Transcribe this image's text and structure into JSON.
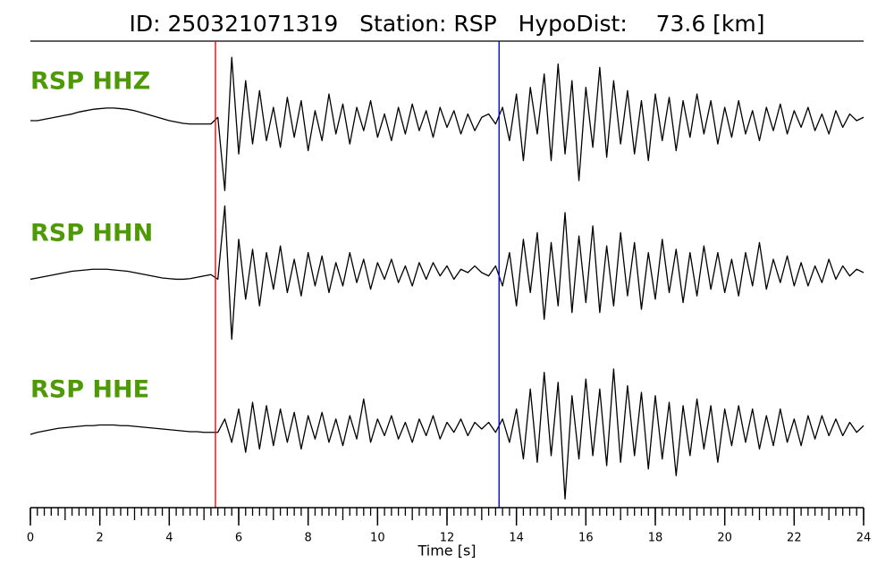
{
  "chart_data": {
    "type": "line",
    "title": "ID: 250321071319   Station: RSP   HypoDist:    73.6 [km]",
    "x_label": "Time [s]",
    "x": [
      0,
      0.2,
      0.4,
      0.6,
      0.8,
      1,
      1.2,
      1.4,
      1.6,
      1.8,
      2,
      2.2,
      2.4,
      2.6,
      2.8,
      3,
      3.2,
      3.4,
      3.6,
      3.8,
      4,
      4.2,
      4.4,
      4.6,
      4.8,
      5,
      5.2,
      5.4,
      5.6,
      5.8,
      6,
      6.2,
      6.4,
      6.6,
      6.8,
      7,
      7.2,
      7.4,
      7.6,
      7.8,
      8,
      8.2,
      8.4,
      8.6,
      8.8,
      9,
      9.2,
      9.4,
      9.6,
      9.8,
      10,
      10.2,
      10.4,
      10.6,
      10.8,
      11,
      11.2,
      11.4,
      11.6,
      11.8,
      12,
      12.2,
      12.4,
      12.6,
      12.8,
      13,
      13.2,
      13.4,
      13.6,
      13.8,
      14,
      14.2,
      14.4,
      14.6,
      14.8,
      15,
      15.2,
      15.4,
      15.6,
      15.8,
      16,
      16.2,
      16.4,
      16.6,
      16.8,
      17,
      17.2,
      17.4,
      17.6,
      17.8,
      18,
      18.2,
      18.4,
      18.6,
      18.8,
      19,
      19.2,
      19.4,
      19.6,
      19.8,
      20,
      20.2,
      20.4,
      20.6,
      20.8,
      21,
      21.2,
      21.4,
      21.6,
      21.8,
      22,
      22.2,
      22.4,
      22.6,
      22.8,
      23,
      23.2,
      23.4,
      23.6,
      23.8,
      24
    ],
    "series": [
      {
        "name": "RSP HHZ",
        "color": "#000000",
        "values": [
          0,
          0,
          0.02,
          0.04,
          0.06,
          0.08,
          0.1,
          0.13,
          0.15,
          0.17,
          0.18,
          0.19,
          0.19,
          0.18,
          0.17,
          0.15,
          0.12,
          0.09,
          0.06,
          0.03,
          0,
          -0.02,
          -0.04,
          -0.05,
          -0.05,
          -0.05,
          -0.05,
          0.05,
          -1.05,
          0.95,
          -0.5,
          0.6,
          -0.35,
          0.45,
          -0.3,
          0.2,
          -0.4,
          0.35,
          -0.25,
          0.3,
          -0.45,
          0.15,
          -0.3,
          0.4,
          -0.2,
          0.25,
          -0.35,
          0.2,
          -0.15,
          0.3,
          -0.25,
          0.1,
          -0.3,
          0.2,
          -0.2,
          0.25,
          -0.15,
          0.15,
          -0.25,
          0.2,
          -0.1,
          0.15,
          -0.2,
          0.1,
          -0.15,
          0.05,
          0.1,
          -0.05,
          0.2,
          -0.3,
          0.4,
          -0.6,
          0.5,
          -0.2,
          0.7,
          -0.6,
          0.85,
          -0.5,
          0.6,
          -0.9,
          0.5,
          -0.4,
          0.8,
          -0.55,
          0.6,
          -0.35,
          0.45,
          -0.5,
          0.3,
          -0.6,
          0.4,
          -0.3,
          0.35,
          -0.45,
          0.3,
          -0.25,
          0.4,
          -0.2,
          0.3,
          -0.35,
          0.2,
          -0.25,
          0.3,
          -0.2,
          0.15,
          -0.3,
          0.2,
          -0.15,
          0.25,
          -0.2,
          0.15,
          -0.1,
          0.2,
          -0.15,
          0.1,
          -0.2,
          0.15,
          -0.1,
          0.1,
          0,
          0.05
        ]
      },
      {
        "name": "RSP HHN",
        "color": "#000000",
        "values": [
          -0.1,
          -0.08,
          -0.06,
          -0.04,
          -0.02,
          0,
          0.02,
          0.03,
          0.04,
          0.05,
          0.05,
          0.05,
          0.04,
          0.03,
          0.02,
          0,
          -0.02,
          -0.04,
          -0.06,
          -0.08,
          -0.09,
          -0.1,
          -0.1,
          -0.09,
          -0.07,
          -0.05,
          -0.03,
          -0.1,
          1.0,
          -1.0,
          0.5,
          -0.4,
          0.35,
          -0.5,
          0.3,
          -0.25,
          0.4,
          -0.3,
          0.2,
          -0.35,
          0.3,
          -0.2,
          0.25,
          -0.3,
          0.15,
          -0.2,
          0.3,
          -0.15,
          0.2,
          -0.25,
          0.15,
          -0.1,
          0.2,
          -0.15,
          0.1,
          -0.2,
          0.15,
          -0.1,
          0.15,
          -0.05,
          0.1,
          -0.1,
          0.05,
          0,
          0.1,
          0,
          -0.05,
          0.1,
          -0.2,
          0.3,
          -0.5,
          0.5,
          -0.3,
          0.6,
          -0.7,
          0.45,
          -0.5,
          0.9,
          -0.6,
          0.55,
          -0.45,
          0.7,
          -0.6,
          0.4,
          -0.5,
          0.6,
          -0.35,
          0.45,
          -0.55,
          0.3,
          -0.4,
          0.5,
          -0.3,
          0.35,
          -0.45,
          0.3,
          -0.35,
          0.4,
          -0.25,
          0.3,
          -0.3,
          0.2,
          -0.35,
          0.3,
          -0.2,
          0.45,
          -0.25,
          0.2,
          -0.15,
          0.25,
          -0.2,
          0.15,
          -0.2,
          0.1,
          -0.15,
          0.2,
          -0.1,
          0.1,
          -0.05,
          0.05,
          0
        ]
      },
      {
        "name": "RSP HHE",
        "color": "#000000",
        "values": [
          -0.08,
          -0.05,
          -0.03,
          -0.01,
          0.01,
          0.02,
          0.03,
          0.04,
          0.05,
          0.05,
          0.06,
          0.06,
          0.06,
          0.05,
          0.05,
          0.04,
          0.03,
          0.02,
          0.01,
          0,
          -0.01,
          -0.02,
          -0.03,
          -0.04,
          -0.04,
          -0.05,
          -0.05,
          -0.05,
          0.15,
          -0.2,
          0.3,
          -0.35,
          0.4,
          -0.3,
          0.35,
          -0.25,
          0.3,
          -0.2,
          0.25,
          -0.3,
          0.2,
          -0.15,
          0.25,
          -0.2,
          0.15,
          -0.25,
          0.2,
          -0.15,
          0.45,
          -0.2,
          0.15,
          -0.1,
          0.2,
          -0.15,
          0.1,
          -0.2,
          0.15,
          -0.1,
          0.2,
          -0.15,
          0.1,
          -0.05,
          0.15,
          -0.1,
          0.1,
          0,
          0.1,
          -0.05,
          0.15,
          -0.2,
          0.3,
          -0.45,
          0.6,
          -0.5,
          0.85,
          -0.4,
          0.7,
          -1.05,
          0.5,
          -0.45,
          0.75,
          -0.4,
          0.6,
          -0.55,
          0.9,
          -0.5,
          0.65,
          -0.4,
          0.55,
          -0.6,
          0.5,
          -0.45,
          0.4,
          -0.7,
          0.35,
          -0.4,
          0.45,
          -0.3,
          0.35,
          -0.5,
          0.3,
          -0.25,
          0.35,
          -0.2,
          0.3,
          -0.3,
          0.2,
          -0.25,
          0.3,
          -0.2,
          0.15,
          -0.25,
          0.2,
          -0.15,
          0.2,
          -0.1,
          0.15,
          -0.1,
          0.1,
          -0.05,
          0.05
        ]
      }
    ],
    "ylim": [
      -1.1,
      1.1
    ],
    "xlim": [
      0,
      24
    ],
    "xticks": [
      0,
      2,
      4,
      6,
      8,
      10,
      12,
      14,
      16,
      18,
      20,
      22,
      24
    ],
    "xminorticks": [
      0,
      0.2,
      0.4,
      0.6,
      0.8,
      1,
      1.2,
      1.4,
      1.6,
      1.8,
      2,
      2.2,
      2.4,
      2.6,
      2.8,
      3,
      3.2,
      3.4,
      3.6,
      3.8,
      4,
      4.2,
      4.4,
      4.6,
      4.8,
      5,
      5.2,
      5.4,
      5.6,
      5.8,
      6,
      6.2,
      6.4,
      6.6,
      6.8,
      7,
      7.2,
      7.4,
      7.6,
      7.8,
      8,
      8.2,
      8.4,
      8.6,
      8.8,
      9,
      9.2,
      9.4,
      9.6,
      9.8,
      10,
      10.2,
      10.4,
      10.6,
      10.8,
      11,
      11.2,
      11.4,
      11.6,
      11.8,
      12,
      12.2,
      12.4,
      12.6,
      12.8,
      13,
      13.2,
      13.4,
      13.6,
      13.8,
      14,
      14.2,
      14.4,
      14.6,
      14.8,
      15,
      15.2,
      15.4,
      15.6,
      15.8,
      16,
      16.2,
      16.4,
      16.6,
      16.8,
      17,
      17.2,
      17.4,
      17.6,
      17.8,
      18,
      18.2,
      18.4,
      18.6,
      18.8,
      19,
      19.2,
      19.4,
      19.6,
      19.8,
      20,
      20.2,
      20.4,
      20.6,
      20.8,
      21,
      21.2,
      21.4,
      21.6,
      21.8,
      22,
      22.2,
      22.4,
      22.6,
      22.8,
      23,
      23.2,
      23.4,
      23.6,
      23.8,
      24
    ],
    "markers": [
      {
        "x": 5.33,
        "color": "#ff0000"
      },
      {
        "x": 13.5,
        "color": "#0000ff"
      }
    ]
  }
}
